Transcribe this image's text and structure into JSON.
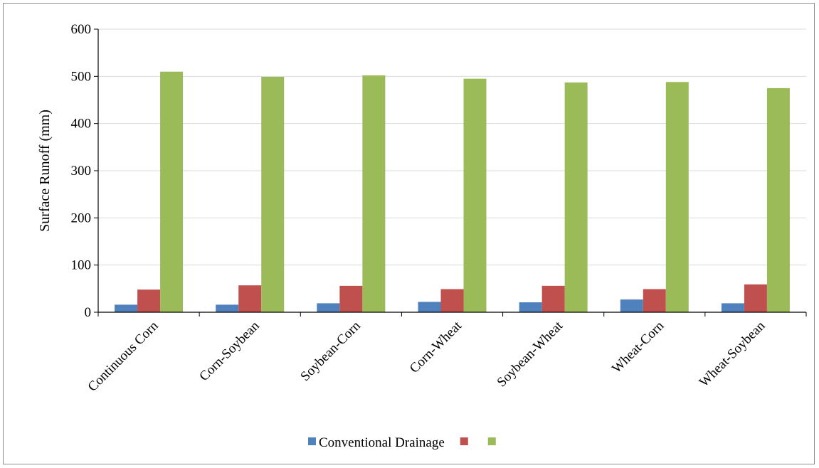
{
  "chart_data": {
    "type": "bar",
    "title": "",
    "xlabel": "",
    "ylabel": "Surface Runoff (mm)",
    "ylim": [
      0,
      600
    ],
    "yticks": [
      0,
      100,
      200,
      300,
      400,
      500,
      600
    ],
    "grid": true,
    "legend_position": "bottom",
    "categories": [
      "Continuous Corn",
      "Corn-Soybean",
      "Soybean-Corn",
      "Corn-Wheat",
      "Soybean-Wheat",
      "Wheat-Corn",
      "Wheat-Soybean"
    ],
    "series": [
      {
        "name": "Conventional Drainage",
        "color": "#4f81bd",
        "values": [
          16,
          16,
          19,
          22,
          21,
          27,
          19
        ]
      },
      {
        "color": "#c0504d",
        "values": [
          48,
          57,
          56,
          49,
          56,
          49,
          59
        ]
      },
      {
        "color": "#9bbb59",
        "values": [
          510,
          499,
          502,
          495,
          487,
          488,
          475
        ]
      }
    ]
  }
}
